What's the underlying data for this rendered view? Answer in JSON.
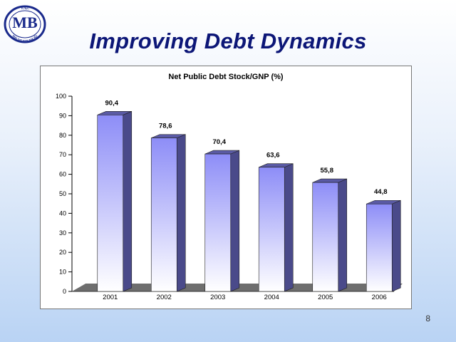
{
  "logo": {
    "top_text": "T.C.",
    "main_text": "MB",
    "ring_text": "MALİYE BAKANLIĞI"
  },
  "slide": {
    "title": "Improving Debt Dynamics",
    "page_number": "8"
  },
  "chart_data": {
    "type": "bar",
    "title": "Net Public Debt Stock/GNP (%)",
    "categories": [
      "2001",
      "2002",
      "2003",
      "2004",
      "2005",
      "2006"
    ],
    "values": [
      90.4,
      78.6,
      70.4,
      63.6,
      55.8,
      44.8
    ],
    "value_labels": [
      "90,4",
      "78,6",
      "70,4",
      "63,6",
      "55,8",
      "44,8"
    ],
    "ylim": [
      0,
      100
    ],
    "yticks": [
      0,
      10,
      20,
      30,
      40,
      50,
      60,
      70,
      80,
      90,
      100
    ],
    "xlabel": "",
    "ylabel": "",
    "grid": false,
    "legend": "none",
    "colors": {
      "bar_top": "#8d8df7",
      "bar_bottom": "#ffffff",
      "bar_side": "#4a4a8a",
      "bar_cap": "#5a5aa4",
      "floor": "#6e6e6e",
      "title": "#0c1677"
    }
  }
}
